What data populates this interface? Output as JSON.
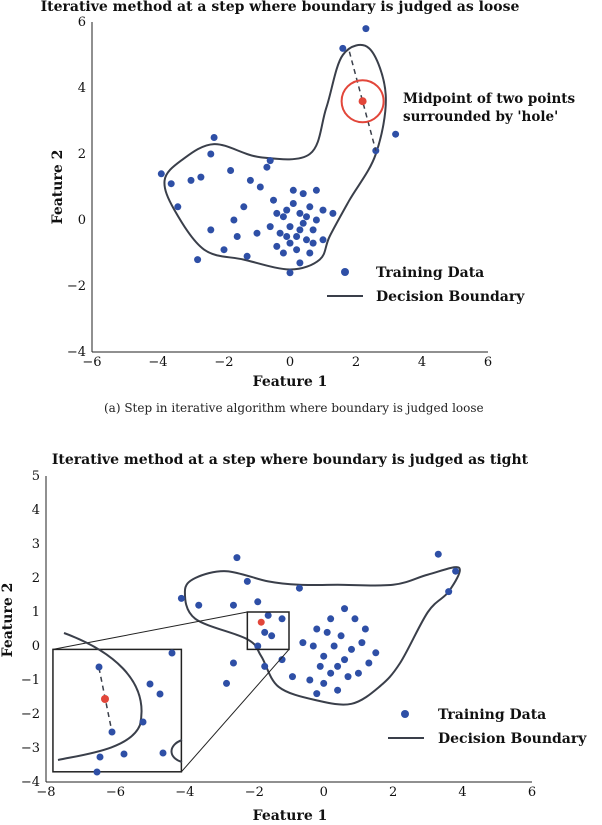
{
  "caption_a": "(a) Step in iterative algorithm where boundary is judged loose",
  "chart_data": [
    {
      "type": "scatter",
      "title": "Iterative method at a step where boundary is judged as loose",
      "xlabel": "Feature 1",
      "ylabel": "Feature 2",
      "xlim": [
        -6,
        6
      ],
      "ylim": [
        -4,
        6
      ],
      "xticks": [
        "−6",
        "−4",
        "−2",
        "0",
        "2",
        "4",
        "6"
      ],
      "yticks": [
        "−4",
        "−2",
        "0",
        "2",
        "4",
        "6"
      ],
      "legend": {
        "placement": "lower-right",
        "entries": [
          "Training Data",
          "Decision Boundary"
        ]
      },
      "annotation": {
        "lines": [
          "Midpoint of two points",
          "surrounded by 'hole'"
        ],
        "midpoint": [
          2.2,
          3.6
        ],
        "segment": [
          [
            1.8,
            5.1
          ],
          [
            2.6,
            2.1
          ]
        ],
        "circle_color": "#e2463a"
      },
      "colors": {
        "points": "#2e4fa6",
        "boundary": "#3a3f4a",
        "midpoint": "#e2463a"
      },
      "boundary": [
        [
          -3.8,
          1.2
        ],
        [
          -3.5,
          0.3
        ],
        [
          -2.6,
          -0.9
        ],
        [
          -1.4,
          -1.2
        ],
        [
          0,
          -1.5
        ],
        [
          0.9,
          -1.2
        ],
        [
          1.2,
          -0.5
        ],
        [
          1.8,
          0.6
        ],
        [
          2.6,
          2.0
        ],
        [
          2.9,
          3.8
        ],
        [
          2.4,
          5.2
        ],
        [
          1.6,
          5.0
        ],
        [
          1.1,
          3.4
        ],
        [
          0.6,
          2.0
        ],
        [
          -0.9,
          1.9
        ],
        [
          -2.3,
          2.3
        ],
        [
          -3.3,
          1.8
        ]
      ],
      "points": [
        [
          2.3,
          5.8
        ],
        [
          1.6,
          5.2
        ],
        [
          2.6,
          2.1
        ],
        [
          3.2,
          2.6
        ],
        [
          -3.9,
          1.4
        ],
        [
          -3.6,
          1.1
        ],
        [
          -3.0,
          1.2
        ],
        [
          -2.4,
          2.0
        ],
        [
          -2.3,
          2.5
        ],
        [
          -2.7,
          1.3
        ],
        [
          -1.8,
          1.5
        ],
        [
          -1.2,
          1.2
        ],
        [
          -0.7,
          1.6
        ],
        [
          -0.6,
          1.8
        ],
        [
          -0.9,
          1.0
        ],
        [
          -1.4,
          0.4
        ],
        [
          -2.4,
          -0.3
        ],
        [
          -2.0,
          -0.9
        ],
        [
          -2.8,
          -1.2
        ],
        [
          -3.4,
          0.4
        ],
        [
          -1.7,
          0.0
        ],
        [
          -1.6,
          -0.5
        ],
        [
          -1.0,
          -0.4
        ],
        [
          -1.3,
          -1.1
        ],
        [
          -0.4,
          -0.8
        ],
        [
          -0.5,
          0.6
        ],
        [
          0.3,
          -1.3
        ],
        [
          0.0,
          -1.6
        ],
        [
          0.6,
          -1.0
        ],
        [
          0.1,
          0.9
        ],
        [
          0.4,
          0.8
        ],
        [
          0.8,
          0.9
        ],
        [
          1.0,
          0.3
        ],
        [
          0.7,
          -0.3
        ],
        [
          1.3,
          0.2
        ],
        [
          1.0,
          -0.6
        ],
        [
          -0.2,
          0.1
        ],
        [
          0.0,
          -0.2
        ],
        [
          0.2,
          -0.5
        ],
        [
          0.5,
          -0.6
        ],
        [
          -0.3,
          -0.4
        ],
        [
          -0.1,
          0.3
        ],
        [
          0.3,
          0.2
        ],
        [
          0.6,
          0.4
        ],
        [
          0.2,
          -0.9
        ],
        [
          -0.2,
          -1.0
        ],
        [
          0.4,
          -0.1
        ],
        [
          0.8,
          0.0
        ],
        [
          -0.6,
          -0.2
        ],
        [
          0.1,
          0.5
        ],
        [
          -0.4,
          0.2
        ],
        [
          0.5,
          0.1
        ],
        [
          0.0,
          -0.7
        ],
        [
          0.3,
          -0.3
        ],
        [
          -0.1,
          -0.5
        ],
        [
          0.7,
          -0.7
        ]
      ]
    },
    {
      "type": "scatter",
      "title": "Iterative method at a step where boundary is judged as tight",
      "xlabel": "Feature 1",
      "ylabel": "Feature 2",
      "xlim": [
        -8,
        6
      ],
      "ylim": [
        -4,
        5
      ],
      "xticks": [
        "−8",
        "−6",
        "−4",
        "−2",
        "0",
        "2",
        "4",
        "6"
      ],
      "yticks": [
        "−4",
        "−3",
        "−2",
        "−1",
        "0",
        "1",
        "2",
        "3",
        "4",
        "5"
      ],
      "legend": {
        "placement": "lower-right",
        "entries": [
          "Training Data",
          "Decision Boundary"
        ]
      },
      "inset": {
        "zoom_region": {
          "x": [
            -2.2,
            -1.0
          ],
          "y": [
            -0.1,
            1.0
          ]
        },
        "inset_region": {
          "x": [
            -7.8,
            -4.1
          ],
          "y": [
            -3.7,
            -0.1
          ]
        }
      },
      "midpoint": [
        -1.8,
        0.7
      ],
      "colors": {
        "points": "#2e4fa6",
        "boundary": "#3a3f4a",
        "midpoint": "#e2463a"
      },
      "boundary": [
        [
          -4.0,
          1.6
        ],
        [
          -3.7,
          0.8
        ],
        [
          -2.2,
          0.2
        ],
        [
          -1.8,
          -0.3
        ],
        [
          -1.3,
          -1.2
        ],
        [
          -0.2,
          -1.6
        ],
        [
          0.8,
          -1.7
        ],
        [
          1.6,
          -1.2
        ],
        [
          2.2,
          -0.5
        ],
        [
          3.0,
          1.0
        ],
        [
          3.6,
          1.6
        ],
        [
          3.9,
          2.3
        ],
        [
          3.0,
          2.1
        ],
        [
          2.0,
          1.8
        ],
        [
          0.4,
          1.8
        ],
        [
          -0.7,
          1.8
        ],
        [
          -1.6,
          1.9
        ],
        [
          -2.8,
          2.2
        ],
        [
          -3.7,
          2.0
        ]
      ],
      "points": [
        [
          3.3,
          2.7
        ],
        [
          -2.5,
          2.6
        ],
        [
          -2.2,
          1.9
        ],
        [
          -4.1,
          1.4
        ],
        [
          -3.6,
          1.2
        ],
        [
          -2.6,
          1.2
        ],
        [
          -1.9,
          1.3
        ],
        [
          -1.6,
          0.9
        ],
        [
          -1.2,
          0.8
        ],
        [
          -0.7,
          1.7
        ],
        [
          -1.5,
          0.3
        ],
        [
          -1.9,
          0.0
        ],
        [
          -2.6,
          -0.5
        ],
        [
          -1.7,
          -0.6
        ],
        [
          -2.8,
          -1.1
        ],
        [
          -1.2,
          -0.4
        ],
        [
          -0.9,
          -0.9
        ],
        [
          -0.6,
          0.1
        ],
        [
          0.6,
          1.1
        ],
        [
          0.9,
          0.8
        ],
        [
          1.2,
          0.5
        ],
        [
          1.5,
          -0.2
        ],
        [
          1.0,
          -0.8
        ],
        [
          0.4,
          -1.3
        ],
        [
          -0.2,
          -1.4
        ],
        [
          0.0,
          -0.3
        ],
        [
          0.3,
          0.0
        ],
        [
          0.6,
          -0.4
        ],
        [
          0.2,
          -0.8
        ],
        [
          -0.1,
          -0.6
        ],
        [
          0.5,
          0.3
        ],
        [
          0.8,
          -0.1
        ],
        [
          0.1,
          0.4
        ],
        [
          -0.3,
          0.0
        ],
        [
          0.4,
          -0.6
        ],
        [
          0.7,
          -0.9
        ],
        [
          1.1,
          0.1
        ],
        [
          -0.4,
          -1.0
        ],
        [
          0.0,
          -1.1
        ],
        [
          1.3,
          -0.5
        ],
        [
          0.2,
          0.8
        ],
        [
          -0.2,
          0.5
        ],
        [
          3.6,
          1.6
        ],
        [
          3.8,
          2.2
        ],
        [
          -1.7,
          0.4
        ]
      ]
    }
  ]
}
